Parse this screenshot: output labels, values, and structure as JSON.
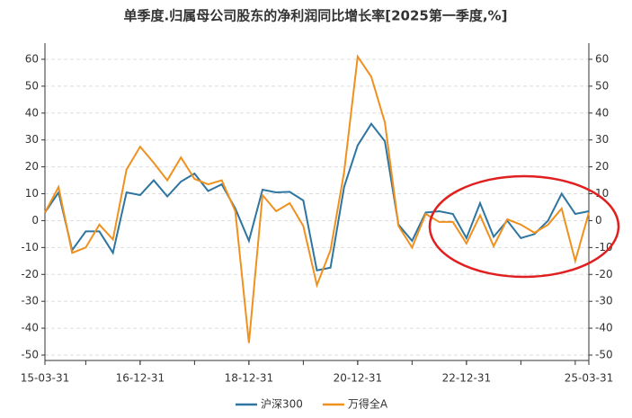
{
  "chart_data": {
    "type": "line",
    "title": "单季度.归属母公司股东的净利润同比增长率[2025第一季度,%]",
    "categories": [
      "15-03-31",
      null,
      null,
      null,
      null,
      null,
      null,
      "16-12-31",
      null,
      null,
      null,
      null,
      null,
      null,
      null,
      "18-12-31",
      null,
      null,
      null,
      null,
      null,
      null,
      null,
      "20-12-31",
      null,
      null,
      null,
      null,
      null,
      null,
      null,
      "22-12-31",
      null,
      null,
      null,
      null,
      null,
      null,
      null,
      null,
      "25-03-31"
    ],
    "series": [
      {
        "name": "沪深300",
        "color": "#2e75a0",
        "values": [
          3,
          10.5,
          -11,
          -4,
          -4,
          -12,
          10.5,
          9.5,
          15,
          9,
          14.5,
          17.5,
          11,
          13.5,
          4.5,
          -7.5,
          11.5,
          10.5,
          10.7,
          7.5,
          -18.5,
          -17.5,
          12.5,
          28,
          36,
          29.5,
          -1.5,
          -7.5,
          3,
          3.5,
          2.5,
          -6.5,
          6.5,
          -6,
          0,
          -6.5,
          -5,
          0,
          10,
          2.5,
          3.5
        ]
      },
      {
        "name": "万得全A",
        "color": "#f0901e",
        "values": [
          3,
          12.5,
          -12,
          -10,
          -1.5,
          -7,
          19,
          27.5,
          21.5,
          15,
          23.5,
          15.5,
          13.5,
          15,
          3.5,
          -45.5,
          9.5,
          3.5,
          6.5,
          -2,
          -24,
          -11,
          18,
          61,
          53.5,
          36.5,
          -2,
          -10,
          2.5,
          -0.5,
          -0.5,
          -8.5,
          2,
          -9.5,
          0.5,
          -1.5,
          -4.5,
          -1.5,
          4.5,
          -15,
          3
        ]
      }
    ],
    "ylim": [
      -52,
      66
    ],
    "yticks": [
      -50,
      -40,
      -30,
      -20,
      -10,
      0,
      10,
      20,
      30,
      40,
      50,
      60
    ],
    "y2lim": [
      -52,
      66
    ],
    "y2ticks": [
      -50,
      -40,
      -30,
      -20,
      -10,
      0,
      10,
      20,
      30,
      40,
      50,
      60
    ],
    "grid": true,
    "legend": "bottom"
  }
}
